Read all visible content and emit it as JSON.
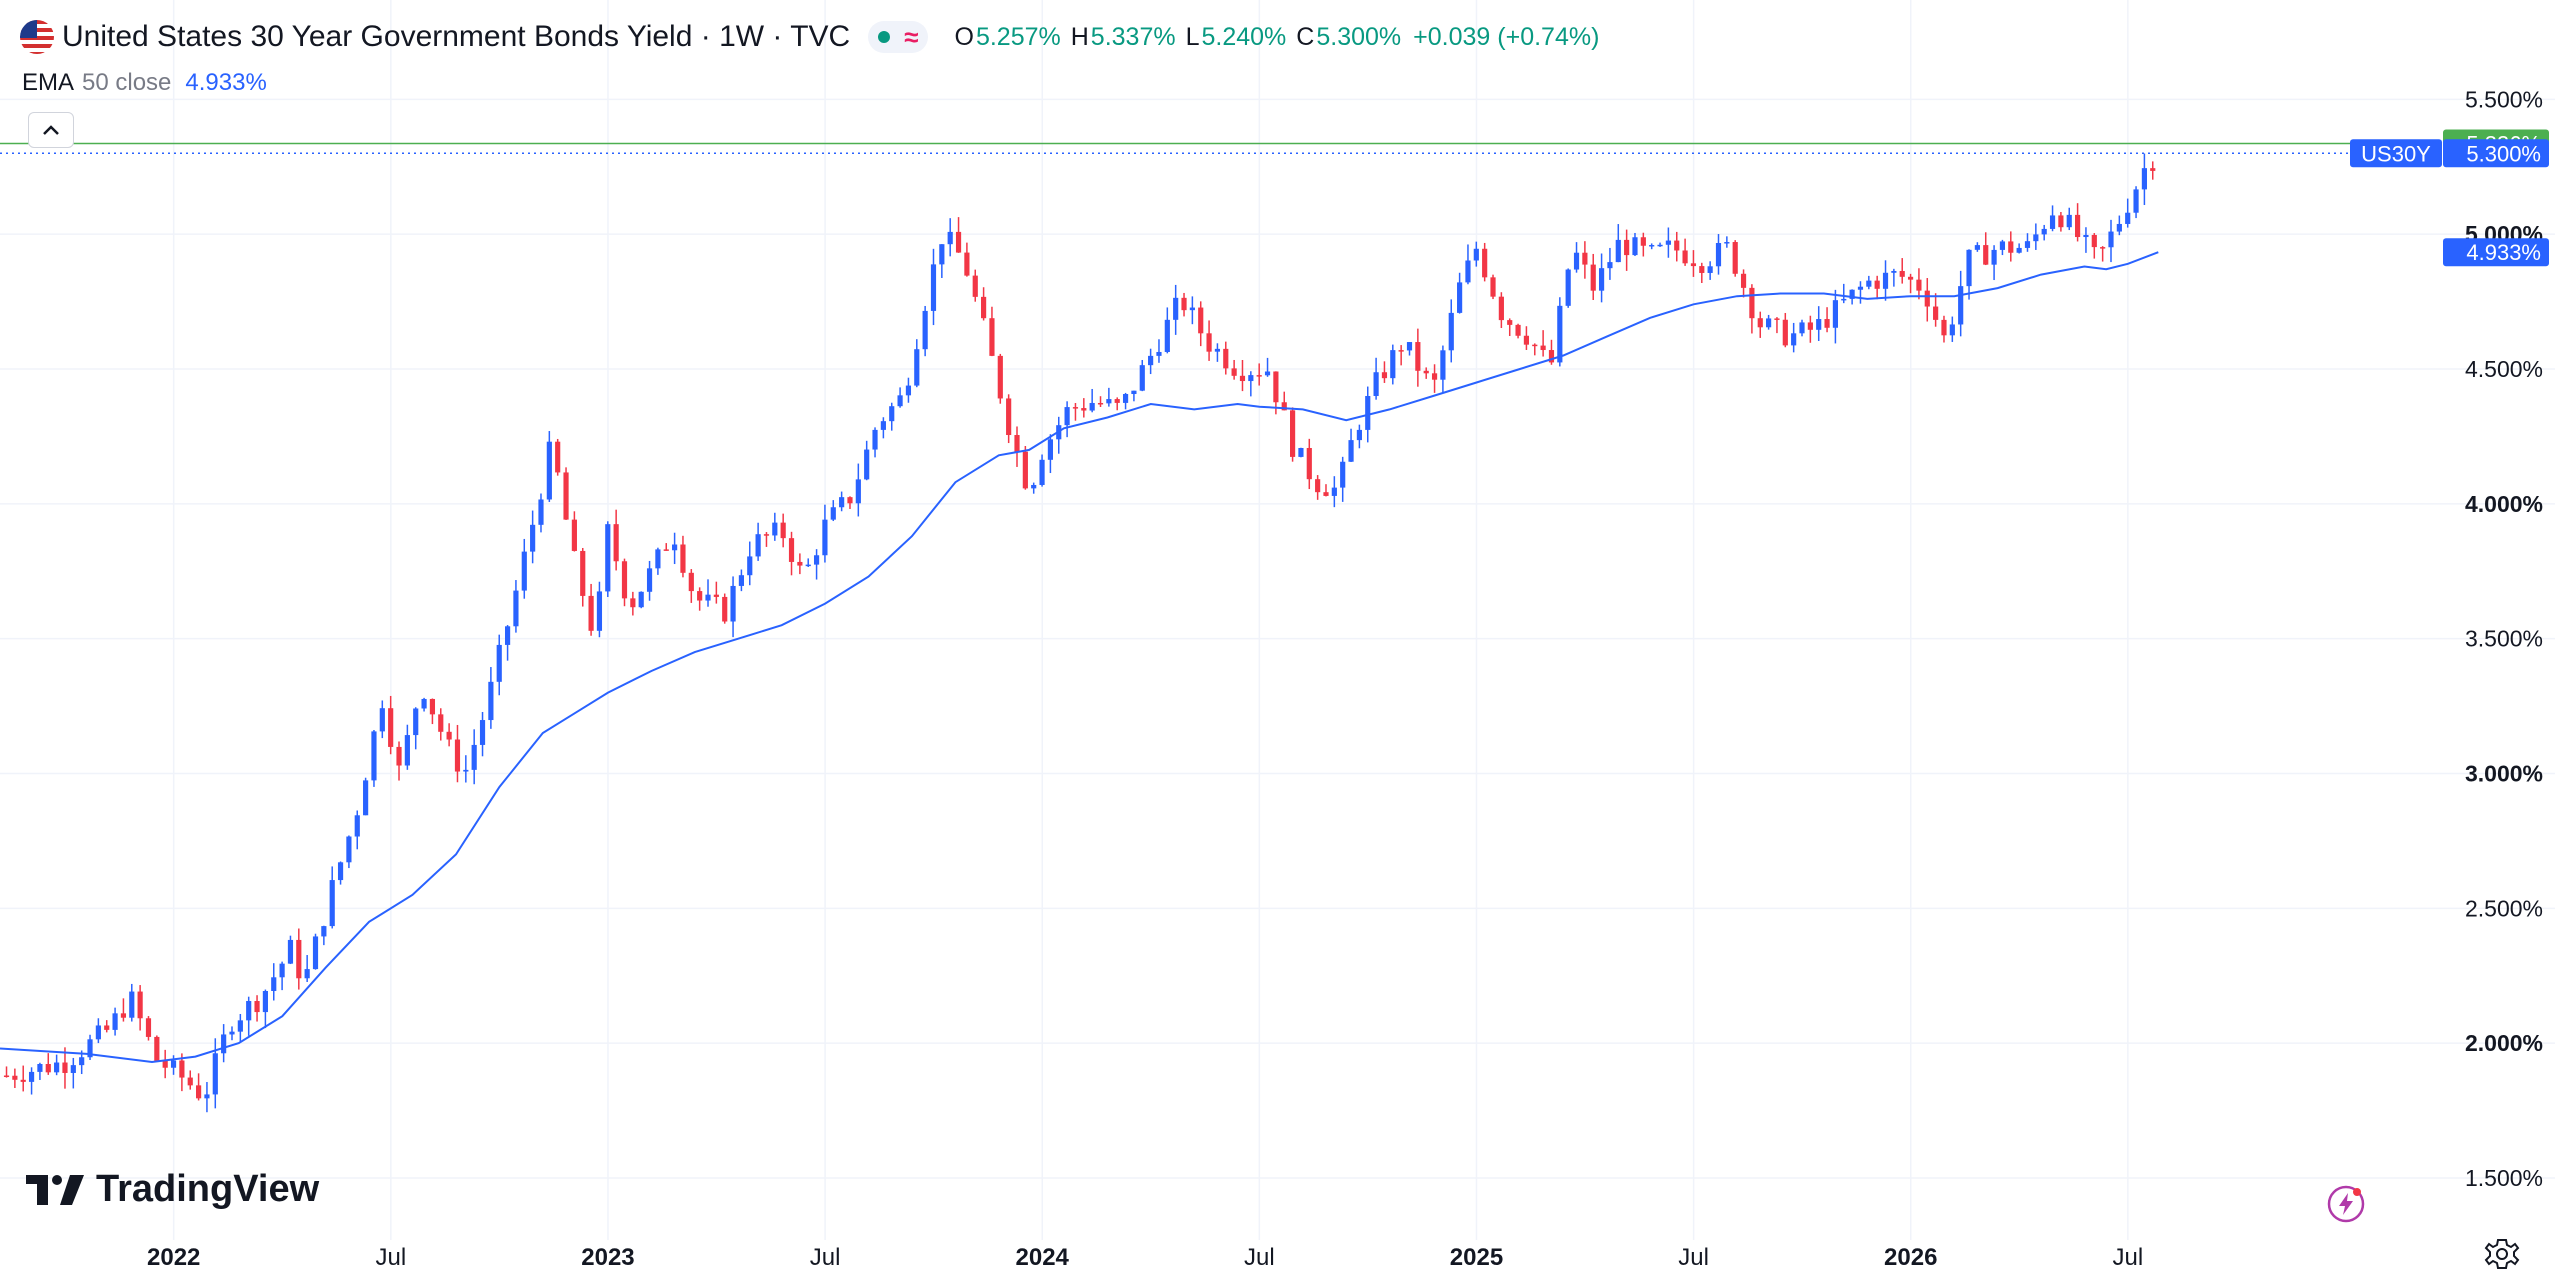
{
  "header": {
    "title": "United States 30 Year Government Bonds Yield · 1W · TVC",
    "ohlc": [
      {
        "key": "O",
        "value": "5.257%"
      },
      {
        "key": "H",
        "value": "5.337%"
      },
      {
        "key": "L",
        "value": "5.240%"
      },
      {
        "key": "C",
        "value": "5.300%"
      }
    ],
    "change": "+0.039 (+0.74%)"
  },
  "indicator": {
    "name": "EMA",
    "params": "50 close",
    "value": "4.933%"
  },
  "logo_text": "TradingView",
  "icons": [
    "us-flag-icon",
    "market-status-dot-icon",
    "wave-icon",
    "chevron-up-icon",
    "tradingview-logo-icon",
    "lightning-icon",
    "gear-icon"
  ],
  "colors": {
    "up": "#2962ff",
    "down": "#f23645",
    "ema": "#2962ff",
    "highline": "#4caf50",
    "lastline": "#2962ff",
    "positive": "#089981"
  },
  "chart_data": {
    "type": "candlestick",
    "title": "United States 30 Year Government Bonds Yield",
    "interval": "1W",
    "y_axis_ticks": [
      "5.500%",
      "5.000%",
      "4.500%",
      "4.000%",
      "3.500%",
      "3.000%",
      "2.500%",
      "2.000%",
      "1.500%"
    ],
    "y_tick_values": [
      5.5,
      5.0,
      4.5,
      4.0,
      3.5,
      3.0,
      2.5,
      2.0,
      1.5
    ],
    "y_bold_ticks": [
      5.0,
      4.0,
      3.0,
      2.0
    ],
    "ylim": [
      1.27,
      5.72
    ],
    "x_axis_ticks": [
      "2022",
      "Jul",
      "2023",
      "Jul",
      "2024",
      "Jul",
      "2025",
      "Jul",
      "2026",
      "Jul"
    ],
    "x_tick_years": [
      2022.0,
      2022.5,
      2023.0,
      2023.5,
      2024.0,
      2024.5,
      2025.0,
      2025.5,
      2026.0,
      2026.5
    ],
    "x_bold_ticks": [
      "2022",
      "2023",
      "2024",
      "2025",
      "2026"
    ],
    "xlim": [
      2021.6,
      2027.0
    ],
    "price_labels": [
      {
        "text": "5.336%",
        "value": 5.336,
        "kind": "high"
      },
      {
        "text": "US30Y",
        "value": 5.3,
        "kind": "symbol"
      },
      {
        "text": "5.300%",
        "value": 5.3,
        "kind": "last"
      },
      {
        "text": "4.933%",
        "value": 4.933,
        "kind": "ema"
      }
    ],
    "close_path": [
      [
        2021.615,
        1.88
      ],
      [
        2021.75,
        1.93
      ],
      [
        2021.85,
        2.05
      ],
      [
        2021.9,
        2.17
      ],
      [
        2021.96,
        1.94
      ],
      [
        2022.03,
        1.86
      ],
      [
        2022.07,
        1.8
      ],
      [
        2022.13,
        2.08
      ],
      [
        2022.2,
        2.17
      ],
      [
        2022.27,
        2.35
      ],
      [
        2022.3,
        2.22
      ],
      [
        2022.36,
        2.55
      ],
      [
        2022.42,
        2.85
      ],
      [
        2022.48,
        3.28
      ],
      [
        2022.52,
        3.0
      ],
      [
        2022.57,
        3.34
      ],
      [
        2022.63,
        3.1
      ],
      [
        2022.67,
        3.0
      ],
      [
        2022.72,
        3.25
      ],
      [
        2022.78,
        3.62
      ],
      [
        2022.83,
        3.95
      ],
      [
        2022.87,
        4.22
      ],
      [
        2022.92,
        3.8
      ],
      [
        2022.97,
        3.5
      ],
      [
        2023.0,
        3.9
      ],
      [
        2023.05,
        3.62
      ],
      [
        2023.1,
        3.75
      ],
      [
        2023.15,
        3.9
      ],
      [
        2023.2,
        3.65
      ],
      [
        2023.27,
        3.6
      ],
      [
        2023.33,
        3.85
      ],
      [
        2023.4,
        3.9
      ],
      [
        2023.45,
        3.72
      ],
      [
        2023.5,
        3.92
      ],
      [
        2023.56,
        4.03
      ],
      [
        2023.62,
        4.3
      ],
      [
        2023.68,
        4.4
      ],
      [
        2023.73,
        4.75
      ],
      [
        2023.77,
        5.0
      ],
      [
        2023.82,
        4.9
      ],
      [
        2023.87,
        4.62
      ],
      [
        2023.93,
        4.25
      ],
      [
        2023.97,
        4.05
      ],
      [
        2024.0,
        4.2
      ],
      [
        2024.06,
        4.35
      ],
      [
        2024.12,
        4.38
      ],
      [
        2024.18,
        4.35
      ],
      [
        2024.25,
        4.55
      ],
      [
        2024.32,
        4.76
      ],
      [
        2024.38,
        4.6
      ],
      [
        2024.45,
        4.5
      ],
      [
        2024.52,
        4.5
      ],
      [
        2024.58,
        4.2
      ],
      [
        2024.63,
        4.08
      ],
      [
        2024.68,
        4.05
      ],
      [
        2024.72,
        4.27
      ],
      [
        2024.77,
        4.45
      ],
      [
        2024.83,
        4.6
      ],
      [
        2024.9,
        4.42
      ],
      [
        2024.96,
        4.8
      ],
      [
        2025.0,
        4.95
      ],
      [
        2025.06,
        4.7
      ],
      [
        2025.12,
        4.62
      ],
      [
        2025.17,
        4.5
      ],
      [
        2025.22,
        4.95
      ],
      [
        2025.27,
        4.8
      ],
      [
        2025.33,
        4.97
      ],
      [
        2025.4,
        4.92
      ],
      [
        2025.45,
        4.95
      ],
      [
        2025.52,
        4.9
      ],
      [
        2025.58,
        4.95
      ],
      [
        2025.65,
        4.67
      ],
      [
        2025.72,
        4.62
      ],
      [
        2025.78,
        4.65
      ],
      [
        2025.85,
        4.75
      ],
      [
        2025.9,
        4.82
      ],
      [
        2025.97,
        4.85
      ],
      [
        2026.03,
        4.8
      ],
      [
        2026.08,
        4.6
      ],
      [
        2026.13,
        4.9
      ],
      [
        2026.2,
        4.95
      ],
      [
        2026.27,
        4.95
      ],
      [
        2026.33,
        5.1
      ],
      [
        2026.38,
        5.0
      ],
      [
        2026.43,
        4.9
      ],
      [
        2026.48,
        5.05
      ],
      [
        2026.54,
        5.25
      ],
      [
        2026.57,
        5.3
      ]
    ],
    "ema_path": [
      [
        2021.6,
        1.98
      ],
      [
        2021.8,
        1.96
      ],
      [
        2021.95,
        1.93
      ],
      [
        2022.05,
        1.95
      ],
      [
        2022.15,
        2.0
      ],
      [
        2022.25,
        2.1
      ],
      [
        2022.35,
        2.28
      ],
      [
        2022.45,
        2.45
      ],
      [
        2022.55,
        2.55
      ],
      [
        2022.65,
        2.7
      ],
      [
        2022.75,
        2.95
      ],
      [
        2022.85,
        3.15
      ],
      [
        2022.92,
        3.22
      ],
      [
        2023.0,
        3.3
      ],
      [
        2023.1,
        3.38
      ],
      [
        2023.2,
        3.45
      ],
      [
        2023.3,
        3.5
      ],
      [
        2023.4,
        3.55
      ],
      [
        2023.5,
        3.63
      ],
      [
        2023.6,
        3.73
      ],
      [
        2023.7,
        3.88
      ],
      [
        2023.8,
        4.08
      ],
      [
        2023.9,
        4.18
      ],
      [
        2023.97,
        4.2
      ],
      [
        2024.05,
        4.28
      ],
      [
        2024.15,
        4.32
      ],
      [
        2024.25,
        4.37
      ],
      [
        2024.35,
        4.35
      ],
      [
        2024.45,
        4.37
      ],
      [
        2024.5,
        4.36
      ],
      [
        2024.6,
        4.35
      ],
      [
        2024.7,
        4.31
      ],
      [
        2024.8,
        4.35
      ],
      [
        2024.9,
        4.4
      ],
      [
        2025.0,
        4.45
      ],
      [
        2025.1,
        4.5
      ],
      [
        2025.2,
        4.55
      ],
      [
        2025.3,
        4.62
      ],
      [
        2025.4,
        4.69
      ],
      [
        2025.5,
        4.74
      ],
      [
        2025.6,
        4.77
      ],
      [
        2025.7,
        4.78
      ],
      [
        2025.8,
        4.78
      ],
      [
        2025.9,
        4.76
      ],
      [
        2026.0,
        4.77
      ],
      [
        2026.1,
        4.77
      ],
      [
        2026.2,
        4.8
      ],
      [
        2026.3,
        4.85
      ],
      [
        2026.4,
        4.88
      ],
      [
        2026.45,
        4.87
      ],
      [
        2026.5,
        4.89
      ],
      [
        2026.57,
        4.933
      ]
    ]
  }
}
